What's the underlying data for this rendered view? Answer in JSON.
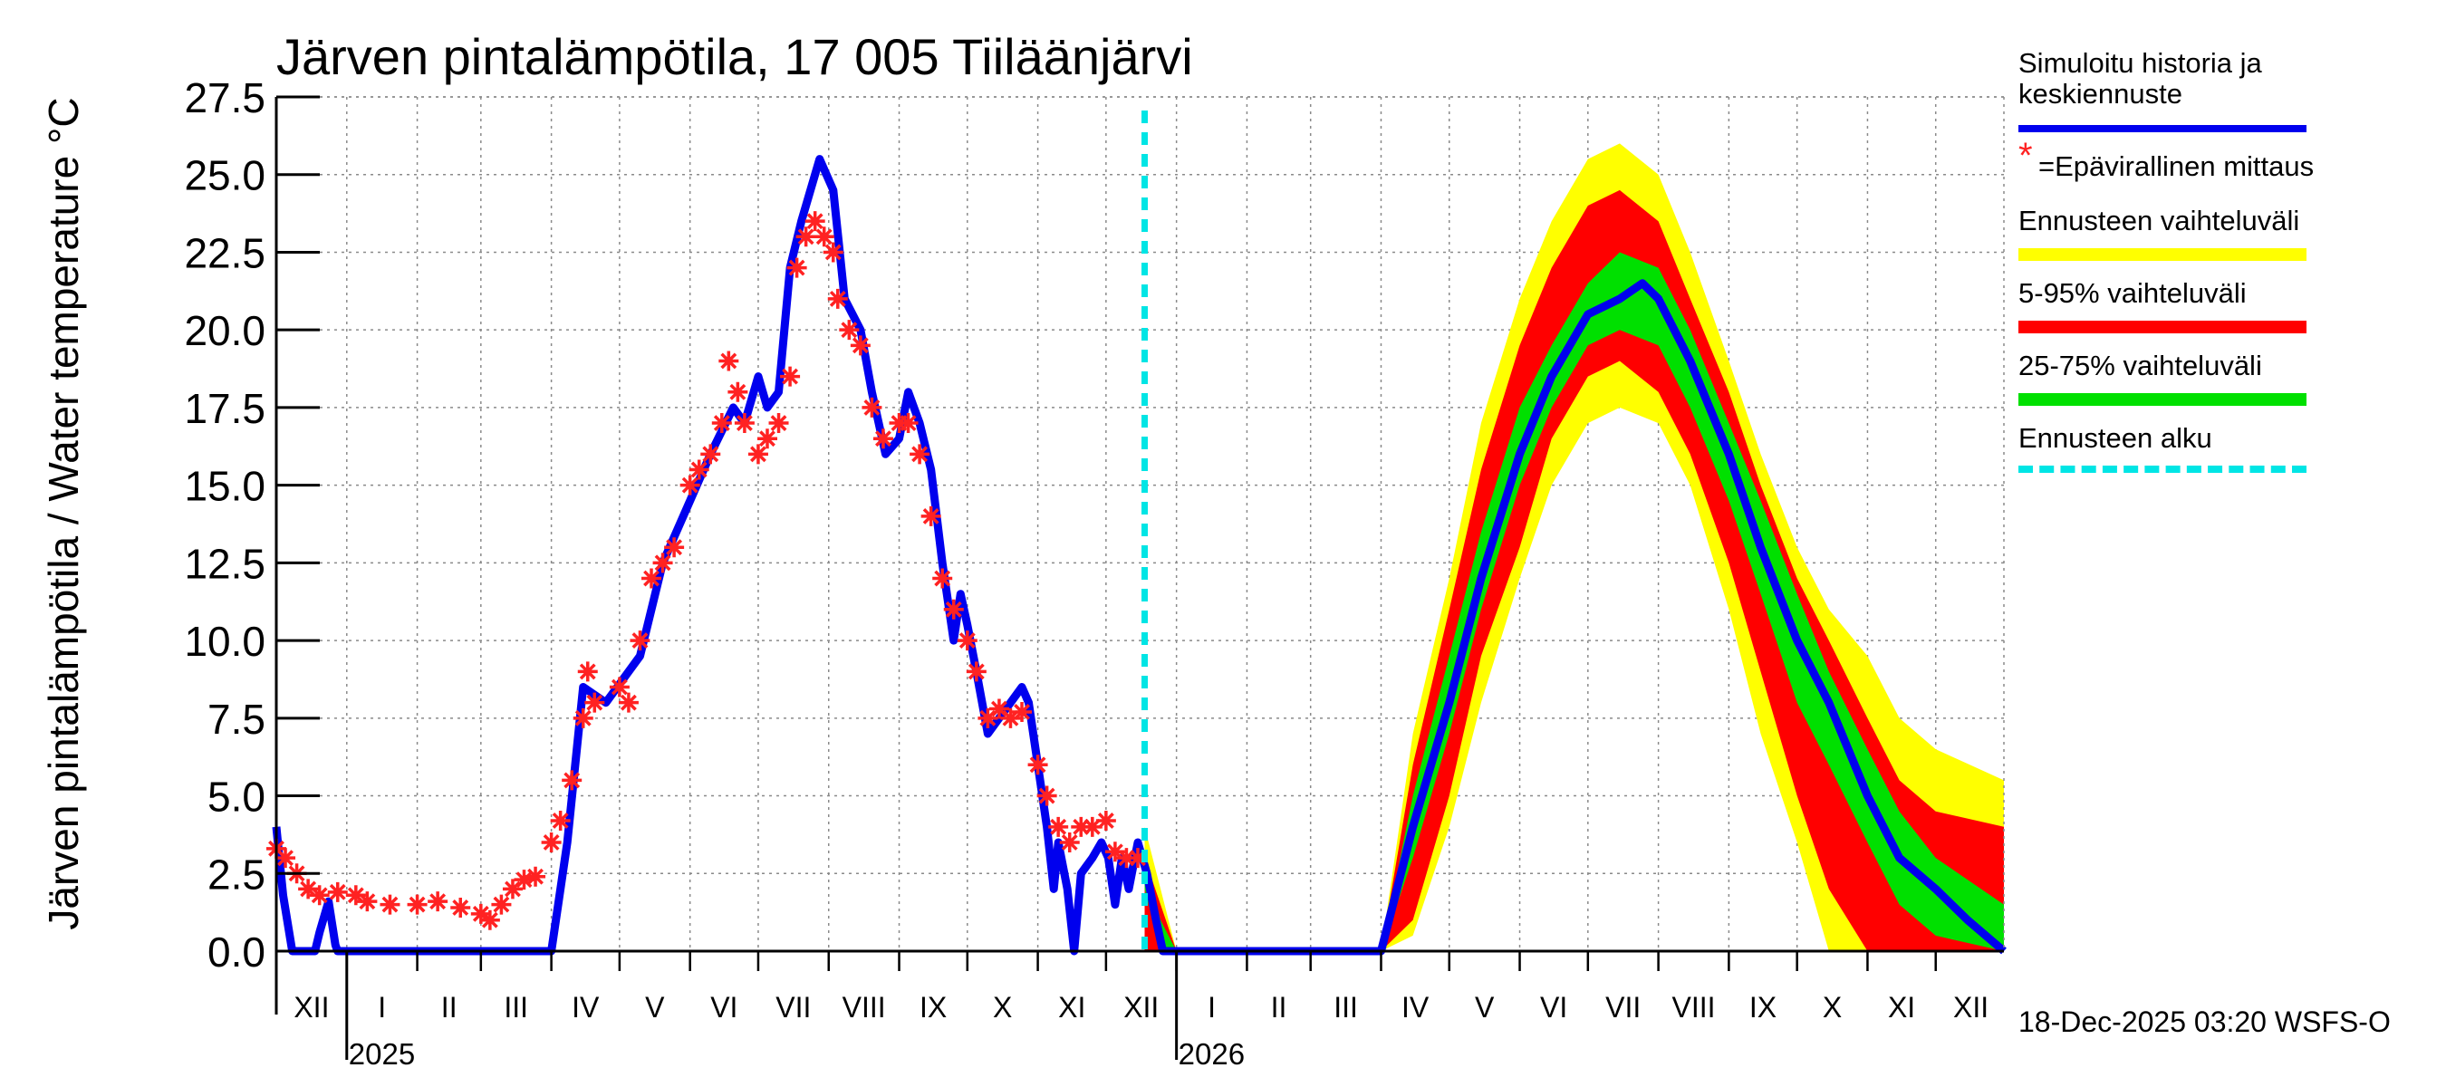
{
  "title": "Järven pintalämpötila, 17 005 Tiiläänjärvi",
  "footer_stamp": "18-Dec-2025 03:20 WSFS-O",
  "legend": {
    "simulated_line1": "Simuloitu historia ja",
    "simulated_line2": "keskiennuste",
    "measurement_marker": "*",
    "measurement": "=Epävirallinen mittaus",
    "forecast_range": "Ennusteen vaihteluväli",
    "range_5_95": "5-95% vaihteluväli",
    "range_25_75": "25-75% vaihteluväli",
    "forecast_start": "Ennusteen alku"
  },
  "colors": {
    "simulated": "#0000ee",
    "measurement": "#ff2222",
    "forecast_range": "#ffff00",
    "range_5_95": "#ff0000",
    "range_25_75": "#00e000",
    "forecast_start": "#00e5e5"
  },
  "chart_data": {
    "type": "line",
    "title": "Järven pintalämpötila, 17 005 Tiiläänjärvi",
    "ylabel": "Järven pintalämpötila / Water temperature °C",
    "ylim": [
      0,
      27.5
    ],
    "yticks": [
      "0.0",
      "2.5",
      "5.0",
      "7.5",
      "10.0",
      "12.5",
      "15.0",
      "17.5",
      "20.0",
      "22.5",
      "25.0",
      "27.5"
    ],
    "x_start": "2024-12-01",
    "x_end": "2026-12-31",
    "month_labels": [
      "XII",
      "I",
      "II",
      "III",
      "IV",
      "V",
      "VI",
      "VII",
      "VIII",
      "IX",
      "X",
      "XI",
      "XII",
      "I",
      "II",
      "III",
      "IV",
      "V",
      "VI",
      "VII",
      "VIII",
      "IX",
      "X",
      "XI",
      "XII"
    ],
    "year_labels": [
      {
        "label": "2025",
        "date": "2025-01-01"
      },
      {
        "label": "2026",
        "date": "2026-01-01"
      }
    ],
    "forecast_start_date": "2025-12-18",
    "series": [
      {
        "name": "Simuloitu historia ja keskiennuste",
        "points": [
          [
            "2024-12-01",
            4.0
          ],
          [
            "2024-12-04",
            1.8
          ],
          [
            "2024-12-08",
            0.0
          ],
          [
            "2024-12-18",
            0.0
          ],
          [
            "2024-12-20",
            0.6
          ],
          [
            "2024-12-24",
            1.6
          ],
          [
            "2024-12-27",
            0.2
          ],
          [
            "2024-12-28",
            0.0
          ],
          [
            "2025-04-01",
            0.0
          ],
          [
            "2025-04-08",
            3.5
          ],
          [
            "2025-04-15",
            8.5
          ],
          [
            "2025-04-25",
            8.0
          ],
          [
            "2025-05-10",
            9.5
          ],
          [
            "2025-05-20",
            12.5
          ],
          [
            "2025-06-01",
            14.5
          ],
          [
            "2025-06-10",
            16.0
          ],
          [
            "2025-06-20",
            17.5
          ],
          [
            "2025-06-25",
            17.0
          ],
          [
            "2025-07-01",
            18.5
          ],
          [
            "2025-07-05",
            17.5
          ],
          [
            "2025-07-10",
            18.0
          ],
          [
            "2025-07-15",
            22.0
          ],
          [
            "2025-07-20",
            23.5
          ],
          [
            "2025-07-28",
            25.5
          ],
          [
            "2025-08-03",
            24.5
          ],
          [
            "2025-08-08",
            21.0
          ],
          [
            "2025-08-15",
            20.0
          ],
          [
            "2025-08-20",
            18.0
          ],
          [
            "2025-08-26",
            16.0
          ],
          [
            "2025-09-01",
            16.5
          ],
          [
            "2025-09-05",
            18.0
          ],
          [
            "2025-09-10",
            17.0
          ],
          [
            "2025-09-15",
            15.5
          ],
          [
            "2025-09-20",
            12.5
          ],
          [
            "2025-09-25",
            10.0
          ],
          [
            "2025-09-28",
            11.5
          ],
          [
            "2025-10-01",
            10.5
          ],
          [
            "2025-10-05",
            9.0
          ],
          [
            "2025-10-10",
            7.0
          ],
          [
            "2025-10-15",
            7.5
          ],
          [
            "2025-10-20",
            8.0
          ],
          [
            "2025-10-25",
            8.5
          ],
          [
            "2025-10-28",
            8.0
          ],
          [
            "2025-11-01",
            6.0
          ],
          [
            "2025-11-05",
            4.0
          ],
          [
            "2025-11-08",
            2.0
          ],
          [
            "2025-11-10",
            3.5
          ],
          [
            "2025-11-14",
            2.0
          ],
          [
            "2025-11-17",
            0.0
          ],
          [
            "2025-11-20",
            2.5
          ],
          [
            "2025-11-25",
            3.0
          ],
          [
            "2025-11-29",
            3.5
          ],
          [
            "2025-12-02",
            3.0
          ],
          [
            "2025-12-05",
            1.5
          ],
          [
            "2025-12-08",
            3.0
          ],
          [
            "2025-12-11",
            2.0
          ],
          [
            "2025-12-15",
            3.5
          ],
          [
            "2025-12-19",
            2.5
          ],
          [
            "2025-12-23",
            1.0
          ],
          [
            "2025-12-26",
            0.0
          ],
          [
            "2026-04-01",
            0.0
          ],
          [
            "2026-04-15",
            4.0
          ],
          [
            "2026-05-01",
            8.0
          ],
          [
            "2026-05-15",
            12.0
          ],
          [
            "2026-06-01",
            16.0
          ],
          [
            "2026-06-15",
            18.5
          ],
          [
            "2026-07-01",
            20.5
          ],
          [
            "2026-07-15",
            21.0
          ],
          [
            "2026-07-25",
            21.5
          ],
          [
            "2026-08-01",
            21.0
          ],
          [
            "2026-08-15",
            19.0
          ],
          [
            "2026-09-01",
            16.0
          ],
          [
            "2026-09-15",
            13.0
          ],
          [
            "2026-10-01",
            10.0
          ],
          [
            "2026-10-15",
            8.0
          ],
          [
            "2026-11-01",
            5.0
          ],
          [
            "2026-11-15",
            3.0
          ],
          [
            "2026-12-01",
            2.0
          ],
          [
            "2026-12-15",
            1.0
          ],
          [
            "2026-12-31",
            0.0
          ]
        ]
      },
      {
        "name": "Epävirallinen mittaus",
        "points": [
          [
            "2024-12-01",
            3.3
          ],
          [
            "2024-12-05",
            3.0
          ],
          [
            "2024-12-10",
            2.5
          ],
          [
            "2024-12-15",
            2.0
          ],
          [
            "2024-12-20",
            1.8
          ],
          [
            "2024-12-28",
            1.9
          ],
          [
            "2025-01-05",
            1.8
          ],
          [
            "2025-01-10",
            1.6
          ],
          [
            "2025-01-20",
            1.5
          ],
          [
            "2025-02-01",
            1.5
          ],
          [
            "2025-02-10",
            1.6
          ],
          [
            "2025-02-20",
            1.4
          ],
          [
            "2025-03-01",
            1.2
          ],
          [
            "2025-03-05",
            1.0
          ],
          [
            "2025-03-10",
            1.5
          ],
          [
            "2025-03-15",
            2.0
          ],
          [
            "2025-03-20",
            2.3
          ],
          [
            "2025-03-25",
            2.4
          ],
          [
            "2025-04-01",
            3.5
          ],
          [
            "2025-04-05",
            4.2
          ],
          [
            "2025-04-10",
            5.5
          ],
          [
            "2025-04-15",
            7.5
          ],
          [
            "2025-04-17",
            9.0
          ],
          [
            "2025-04-20",
            8.0
          ],
          [
            "2025-05-01",
            8.5
          ],
          [
            "2025-05-05",
            8.0
          ],
          [
            "2025-05-10",
            10.0
          ],
          [
            "2025-05-15",
            12.0
          ],
          [
            "2025-05-20",
            12.5
          ],
          [
            "2025-05-25",
            13.0
          ],
          [
            "2025-06-01",
            15.0
          ],
          [
            "2025-06-05",
            15.5
          ],
          [
            "2025-06-10",
            16.0
          ],
          [
            "2025-06-15",
            17.0
          ],
          [
            "2025-06-18",
            19.0
          ],
          [
            "2025-06-22",
            18.0
          ],
          [
            "2025-06-25",
            17.0
          ],
          [
            "2025-07-01",
            16.0
          ],
          [
            "2025-07-05",
            16.5
          ],
          [
            "2025-07-10",
            17.0
          ],
          [
            "2025-07-15",
            18.5
          ],
          [
            "2025-07-18",
            22.0
          ],
          [
            "2025-07-22",
            23.0
          ],
          [
            "2025-07-26",
            23.5
          ],
          [
            "2025-07-30",
            23.0
          ],
          [
            "2025-08-03",
            22.5
          ],
          [
            "2025-08-05",
            21.0
          ],
          [
            "2025-08-10",
            20.0
          ],
          [
            "2025-08-15",
            19.5
          ],
          [
            "2025-08-20",
            17.5
          ],
          [
            "2025-08-25",
            16.5
          ],
          [
            "2025-09-01",
            17.0
          ],
          [
            "2025-09-05",
            17.0
          ],
          [
            "2025-09-10",
            16.0
          ],
          [
            "2025-09-15",
            14.0
          ],
          [
            "2025-09-20",
            12.0
          ],
          [
            "2025-09-25",
            11.0
          ],
          [
            "2025-10-01",
            10.0
          ],
          [
            "2025-10-05",
            9.0
          ],
          [
            "2025-10-10",
            7.5
          ],
          [
            "2025-10-15",
            7.8
          ],
          [
            "2025-10-20",
            7.5
          ],
          [
            "2025-10-25",
            7.7
          ],
          [
            "2025-11-01",
            6.0
          ],
          [
            "2025-11-05",
            5.0
          ],
          [
            "2025-11-10",
            4.0
          ],
          [
            "2025-11-15",
            3.5
          ],
          [
            "2025-11-20",
            4.0
          ],
          [
            "2025-11-25",
            4.0
          ],
          [
            "2025-12-01",
            4.2
          ],
          [
            "2025-12-05",
            3.2
          ],
          [
            "2025-12-10",
            3.0
          ],
          [
            "2025-12-15",
            3.0
          ]
        ]
      },
      {
        "name": "Ennusteen vaihteluväli",
        "points": [
          [
            "2025-12-18",
            0.0,
            4.0
          ],
          [
            "2025-12-25",
            0.0,
            2.0
          ],
          [
            "2026-01-01",
            0.0,
            0.0
          ],
          [
            "2026-04-01",
            0.0,
            0.0
          ],
          [
            "2026-04-15",
            0.5,
            7.0
          ],
          [
            "2026-05-01",
            4.0,
            12.0
          ],
          [
            "2026-05-15",
            8.0,
            17.0
          ],
          [
            "2026-06-01",
            12.0,
            21.0
          ],
          [
            "2026-06-15",
            15.0,
            23.5
          ],
          [
            "2026-07-01",
            17.0,
            25.5
          ],
          [
            "2026-07-15",
            17.5,
            26.0
          ],
          [
            "2026-08-01",
            17.0,
            25.0
          ],
          [
            "2026-08-15",
            15.0,
            22.5
          ],
          [
            "2026-09-01",
            11.0,
            19.0
          ],
          [
            "2026-09-15",
            7.0,
            16.0
          ],
          [
            "2026-10-01",
            3.5,
            13.0
          ],
          [
            "2026-10-15",
            0.0,
            11.0
          ],
          [
            "2026-11-01",
            0.0,
            9.5
          ],
          [
            "2026-11-15",
            0.0,
            7.5
          ],
          [
            "2026-12-01",
            0.0,
            6.5
          ],
          [
            "2026-12-31",
            0.0,
            5.5
          ]
        ]
      },
      {
        "name": "5-95% vaihteluväli",
        "points": [
          [
            "2025-12-18",
            0.0,
            3.0
          ],
          [
            "2025-12-25",
            0.0,
            1.5
          ],
          [
            "2026-01-01",
            0.0,
            0.0
          ],
          [
            "2026-04-01",
            0.0,
            0.0
          ],
          [
            "2026-04-15",
            1.0,
            6.0
          ],
          [
            "2026-05-01",
            5.0,
            11.0
          ],
          [
            "2026-05-15",
            9.5,
            15.5
          ],
          [
            "2026-06-01",
            13.0,
            19.5
          ],
          [
            "2026-06-15",
            16.5,
            22.0
          ],
          [
            "2026-07-01",
            18.5,
            24.0
          ],
          [
            "2026-07-15",
            19.0,
            24.5
          ],
          [
            "2026-08-01",
            18.0,
            23.5
          ],
          [
            "2026-08-15",
            16.0,
            21.0
          ],
          [
            "2026-09-01",
            12.5,
            18.0
          ],
          [
            "2026-09-15",
            9.0,
            15.0
          ],
          [
            "2026-10-01",
            5.0,
            12.0
          ],
          [
            "2026-10-15",
            2.0,
            10.0
          ],
          [
            "2026-11-01",
            0.0,
            7.5
          ],
          [
            "2026-11-15",
            0.0,
            5.5
          ],
          [
            "2026-12-01",
            0.0,
            4.5
          ],
          [
            "2026-12-31",
            0.0,
            4.0
          ]
        ]
      },
      {
        "name": "25-75% vaihteluväli",
        "points": [
          [
            "2025-12-18",
            2.0,
            3.0
          ],
          [
            "2025-12-25",
            0.0,
            1.0
          ],
          [
            "2026-01-01",
            0.0,
            0.0
          ],
          [
            "2026-04-01",
            0.0,
            0.0
          ],
          [
            "2026-04-15",
            3.0,
            5.0
          ],
          [
            "2026-05-01",
            7.0,
            9.5
          ],
          [
            "2026-05-15",
            11.0,
            13.5
          ],
          [
            "2026-06-01",
            15.0,
            17.5
          ],
          [
            "2026-06-15",
            17.5,
            19.5
          ],
          [
            "2026-07-01",
            19.5,
            21.5
          ],
          [
            "2026-07-15",
            20.0,
            22.5
          ],
          [
            "2026-08-01",
            19.5,
            22.0
          ],
          [
            "2026-08-15",
            17.5,
            20.0
          ],
          [
            "2026-09-01",
            14.5,
            17.0
          ],
          [
            "2026-09-15",
            11.5,
            14.5
          ],
          [
            "2026-10-01",
            8.0,
            11.5
          ],
          [
            "2026-10-15",
            6.0,
            9.0
          ],
          [
            "2026-11-01",
            3.5,
            6.5
          ],
          [
            "2026-11-15",
            1.5,
            4.5
          ],
          [
            "2026-12-01",
            0.5,
            3.0
          ],
          [
            "2026-12-31",
            0.0,
            1.5
          ]
        ]
      }
    ]
  }
}
